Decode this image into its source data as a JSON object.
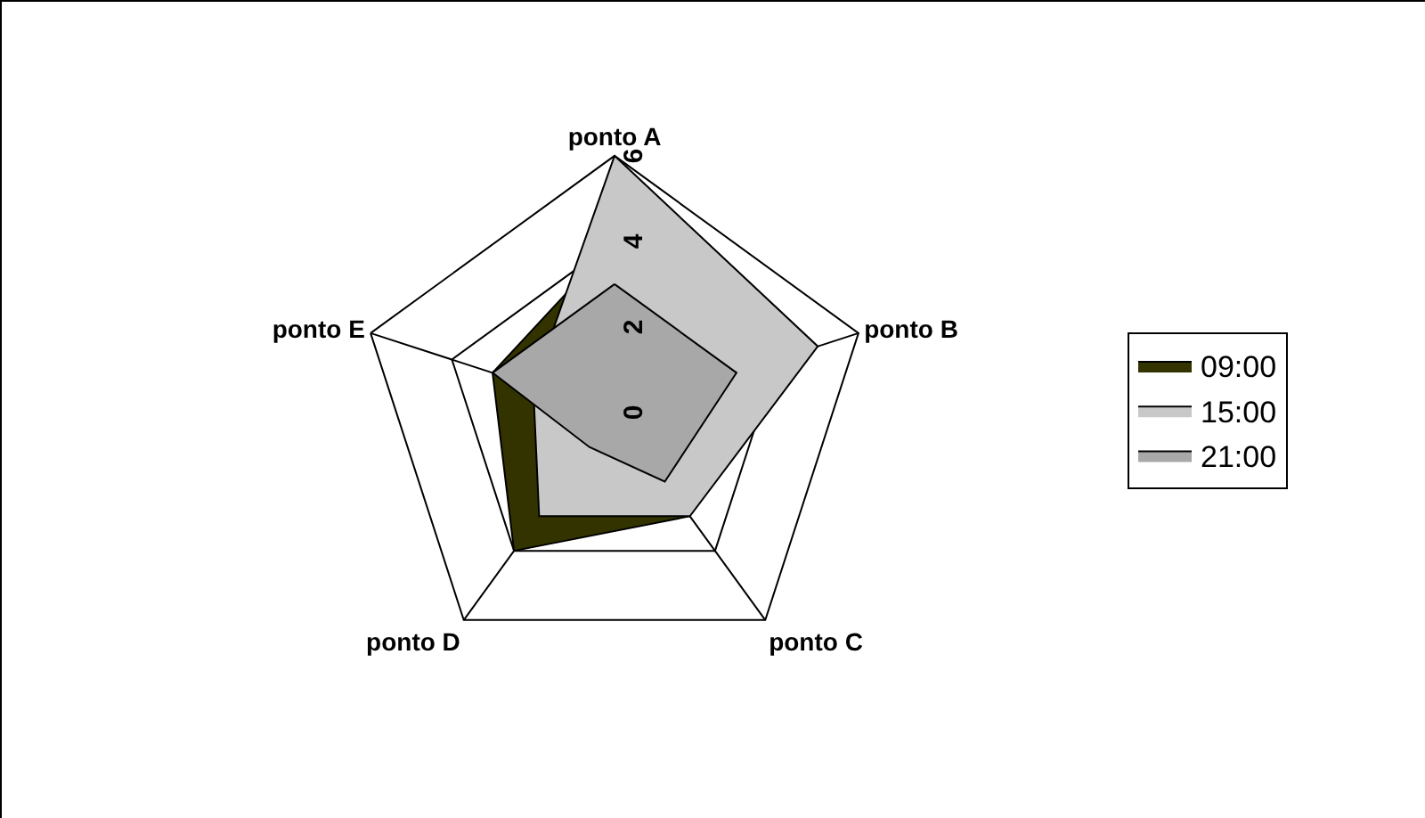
{
  "chart_data": {
    "type": "radar",
    "categories": [
      "ponto A",
      "ponto B",
      "ponto C",
      "ponto D",
      "ponto E"
    ],
    "series": [
      {
        "name": "09:00",
        "color": "#333300",
        "values": [
          4,
          null,
          3,
          4,
          3
        ]
      },
      {
        "name": "15:00",
        "color": "#c8c8c8",
        "values": [
          6,
          5,
          3,
          3,
          2
        ]
      },
      {
        "name": "21:00",
        "color": "#a8a8a8",
        "values": [
          3,
          3,
          2,
          1,
          3
        ]
      }
    ],
    "ylim": [
      0,
      6
    ],
    "yticks": [
      0,
      2,
      4,
      6
    ],
    "grid": true,
    "legend": "right"
  }
}
